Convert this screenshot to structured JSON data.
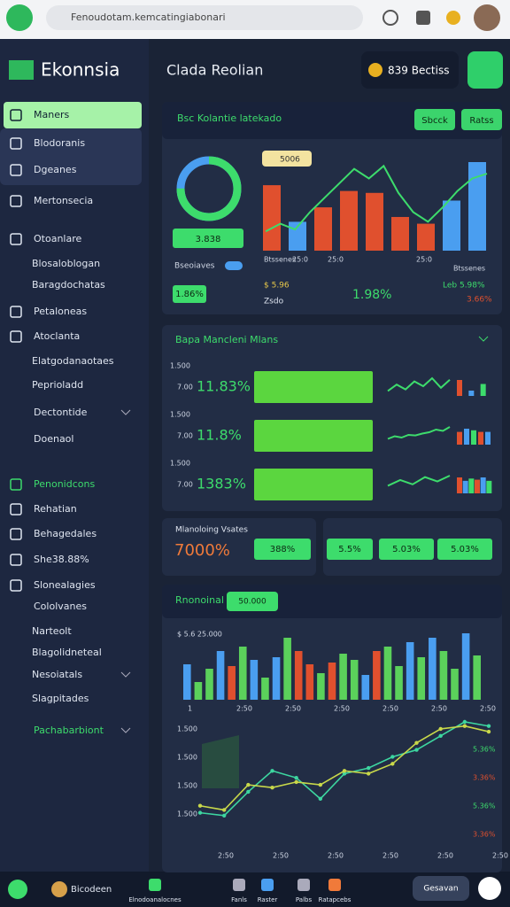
{
  "browser": {
    "url": "Fenoudotam.kemcatingiabonari"
  },
  "header": {
    "brand": "Ekonnsia",
    "title": "Clada Reolian",
    "balance": "839 Bectiss"
  },
  "sidebar": {
    "items": [
      "Maners",
      "Blodoranis",
      "Dgeanes",
      "Mertonsecia",
      "Otoanlare",
      "Blosaloblogan",
      "Baragdochatas",
      "Petaloneas",
      "Atoclanta",
      "Elatgodanaotaes",
      "Peprioladd",
      "Dectontide",
      "Doenaol",
      "Penonidcons",
      "Rehatian",
      "Behagedales",
      "She38.88%",
      "Slonealagies",
      "Cololvanes",
      "Narteolt",
      "Blagolidneteal",
      "Nesoiatals",
      "Slagpitades",
      "Pachabarbiont"
    ]
  },
  "panel1": {
    "title": "Bsc Kolantie latekado",
    "buttons": [
      "Sbcck",
      "Ratss"
    ],
    "donut_label": "3.838",
    "donut_value": 75,
    "legend": "Bseoiaves",
    "stat_a": "1.86%",
    "stat_b": "1.98%",
    "tag": "5006",
    "notes": [
      "$ 5.96",
      "Zsdo",
      "Leb 5.98%",
      "3.66%"
    ],
    "axis_labels": [
      "Btssenes",
      "25:0",
      "25:0",
      "25:0",
      "Btssenes"
    ],
    "bars": [
      68,
      30,
      45,
      62,
      60,
      35,
      28,
      52,
      92
    ],
    "bar_colors": [
      "#e0502e",
      "#4a9ef0",
      "#e0502e",
      "#e0502e",
      "#e0502e",
      "#e0502e",
      "#e0502e",
      "#4a9ef0",
      "#4a9ef0"
    ],
    "line": [
      20,
      28,
      22,
      40,
      55,
      70,
      85,
      75,
      88,
      60,
      40,
      30,
      45,
      62,
      75,
      80
    ]
  },
  "panel2": {
    "title": "Bapa Mancleni Mlans",
    "rows": [
      {
        "axis": "1.500",
        "code": "7.00",
        "stat": "11.83%",
        "spark": [
          10,
          30,
          15,
          40,
          25,
          50,
          20,
          45
        ],
        "mini": [
          60,
          20,
          45
        ]
      },
      {
        "axis": "1.500",
        "code": "7.00",
        "stat": "11.8%",
        "spark": [
          15,
          25,
          20,
          30,
          28,
          35,
          40,
          50,
          45,
          60
        ],
        "mini": [
          40,
          50,
          45,
          40,
          40
        ]
      },
      {
        "axis": "1.500",
        "code": "7.00",
        "stat": "1383%",
        "spark": [
          20,
          40,
          25,
          50,
          35,
          55
        ],
        "mini": [
          70,
          55,
          65,
          60,
          70,
          55
        ]
      }
    ]
  },
  "panel3": {
    "label": "Mlanoloing Vsates",
    "big": "7000%",
    "pills": [
      "388%",
      "5.5%",
      "5.03%",
      "5.03%"
    ]
  },
  "panel4": {
    "title": "Rnonoinal",
    "pill": "50.000",
    "corner": "$ 5.6  25.000",
    "bars": [
      40,
      20,
      35,
      55,
      38,
      60,
      45,
      25,
      48,
      70,
      55,
      40,
      30,
      42,
      52,
      45,
      28,
      55,
      60,
      38,
      65,
      48,
      70,
      55,
      35,
      75,
      50
    ],
    "bar_colors": [
      "#4a9ef0",
      "#5bd15b",
      "#5bd15b",
      "#4a9ef0",
      "#e0502e",
      "#5bd15b",
      "#4a9ef0",
      "#5bd15b",
      "#4a9ef0",
      "#5bd15b",
      "#e0502e",
      "#e0502e",
      "#5bd15b",
      "#e0502e",
      "#5bd15b",
      "#5bd15b",
      "#4a9ef0",
      "#e0502e",
      "#5bd15b",
      "#5bd15b",
      "#4a9ef0",
      "#5bd15b",
      "#4a9ef0",
      "#5bd15b",
      "#5bd15b",
      "#4a9ef0",
      "#5bd15b"
    ],
    "bar_axis": [
      "1",
      "2:50",
      "2:50",
      "2:50",
      "2:50",
      "2:50",
      "2:50"
    ],
    "line_ticks": [
      "1.500",
      "1.500",
      "1.500",
      "1.500"
    ],
    "line_a": [
      30,
      28,
      45,
      60,
      55,
      40,
      58,
      62,
      70,
      75,
      85,
      95,
      92
    ],
    "line_b": [
      35,
      32,
      50,
      48,
      52,
      50,
      60,
      58,
      65,
      80,
      90,
      92,
      88
    ],
    "right_labels": [
      "5.36%",
      "3.36%",
      "5.36%",
      "3.36%"
    ],
    "x_labels": [
      "2:50",
      "2:50",
      "2:50",
      "2:50",
      "2:50",
      "2:50"
    ]
  },
  "bottom": {
    "user": "Bicodeen",
    "tabs": [
      "Elnodoanalocnes",
      "Fanls",
      "Raster",
      "Palbs",
      "Ratapcebs"
    ],
    "button": "Gesavan"
  }
}
